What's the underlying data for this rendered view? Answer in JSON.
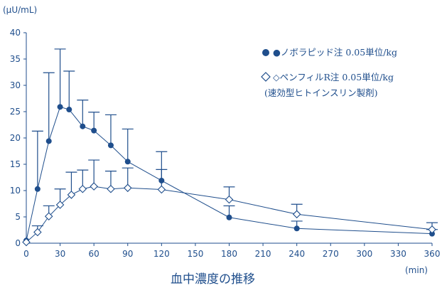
{
  "chart_data": {
    "type": "line",
    "title": "",
    "caption": "血中濃度の推移",
    "y_unit": "(μU/mL)",
    "x_unit": "(min)",
    "xlim": [
      0,
      360
    ],
    "ylim": [
      0,
      40
    ],
    "x_ticks": [
      0,
      30,
      60,
      90,
      120,
      150,
      180,
      210,
      240,
      270,
      300,
      330,
      360
    ],
    "y_ticks": [
      0,
      5,
      10,
      15,
      20,
      25,
      30,
      35,
      40
    ],
    "grid": false,
    "series": [
      {
        "name": "●ノボラピッド注 0.05単位/kg",
        "marker": "filled-circle",
        "x": [
          0,
          10,
          20,
          30,
          38,
          50,
          60,
          75,
          90,
          120,
          180,
          240,
          360
        ],
        "y": [
          0.5,
          10.3,
          19.4,
          25.9,
          25.4,
          22.2,
          21.4,
          18.6,
          15.5,
          11.9,
          4.9,
          2.8,
          1.8
        ],
        "error": [
          0,
          11.0,
          13.0,
          11.0,
          7.3,
          5.0,
          3.5,
          5.8,
          6.2,
          5.5,
          2.2,
          1.4,
          0.8
        ]
      },
      {
        "name": "◇ペンフィルR注 0.05単位/kg",
        "name_note": "(速効型ヒトインスリン製剤)",
        "marker": "open-diamond",
        "x": [
          0,
          10,
          20,
          30,
          40,
          50,
          60,
          75,
          90,
          120,
          180,
          240,
          360
        ],
        "y": [
          0.2,
          2.1,
          5.1,
          7.3,
          9.2,
          10.3,
          10.8,
          10.3,
          10.5,
          10.2,
          8.3,
          5.5,
          2.6
        ],
        "error": [
          0,
          1.2,
          2.0,
          3.0,
          4.3,
          3.6,
          5.0,
          3.4,
          3.8,
          3.8,
          2.4,
          1.9,
          1.3
        ]
      }
    ],
    "legend_position": "top-right"
  },
  "colors": {
    "ink": "#1f4e8c"
  }
}
